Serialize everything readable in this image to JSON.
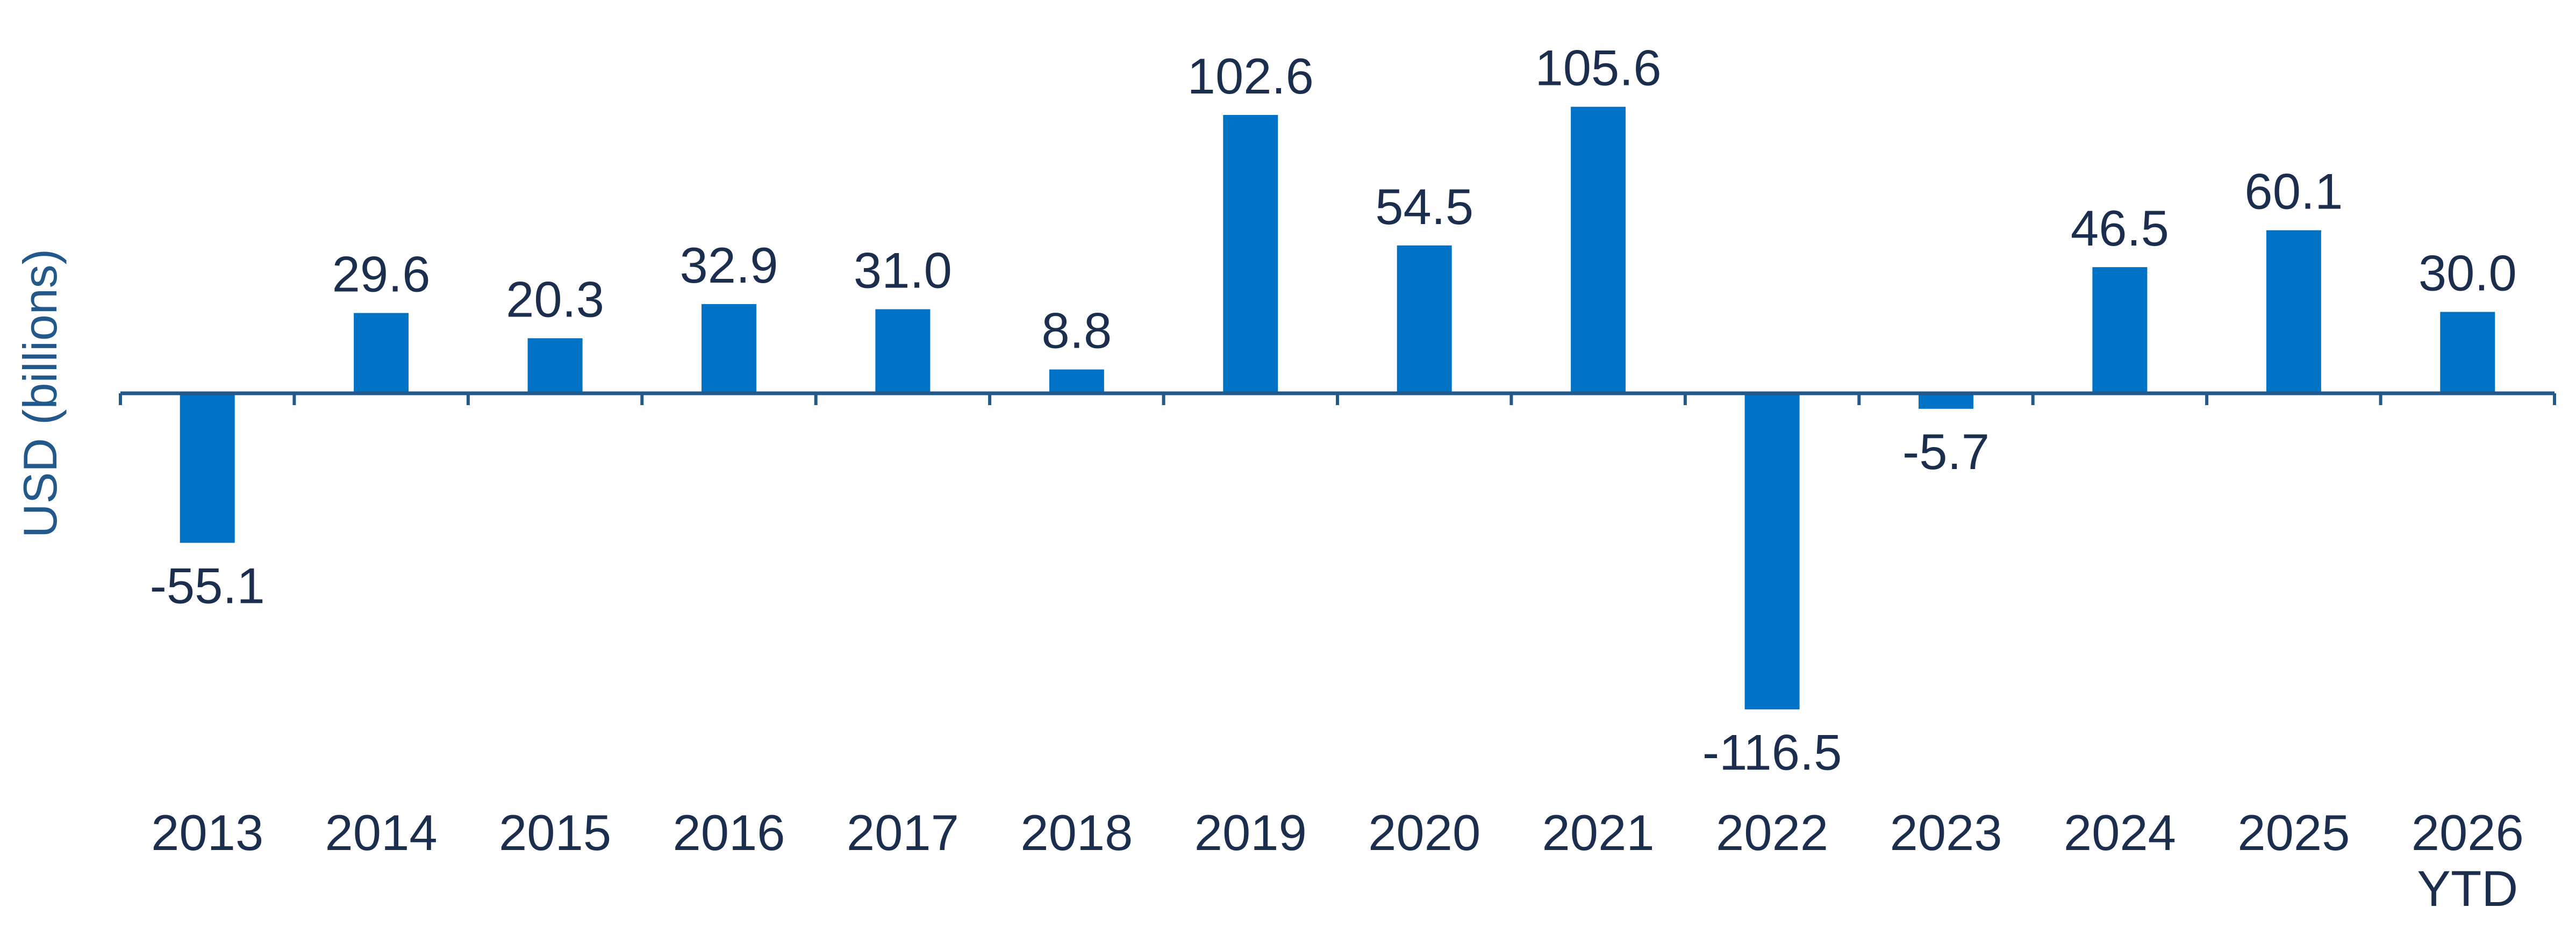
{
  "chart_data": {
    "type": "bar",
    "title": "",
    "xlabel": "",
    "ylabel": "USD (billions)",
    "categories": [
      [
        "2013"
      ],
      [
        "2014"
      ],
      [
        "2015"
      ],
      [
        "2016"
      ],
      [
        "2017"
      ],
      [
        "2018"
      ],
      [
        "2019"
      ],
      [
        "2020"
      ],
      [
        "2021"
      ],
      [
        "2022"
      ],
      [
        "2023"
      ],
      [
        "2024"
      ],
      [
        "2025"
      ],
      [
        "2026",
        "YTD"
      ]
    ],
    "values": [
      -55.1,
      29.6,
      20.3,
      32.9,
      31.0,
      8.8,
      102.6,
      54.5,
      105.6,
      -116.5,
      -5.7,
      46.5,
      60.1,
      30.0
    ],
    "value_labels": [
      "-55.1",
      "29.6",
      "20.3",
      "32.9",
      "31.0",
      "8.8",
      "102.6",
      "54.5",
      "105.6",
      "-116.5",
      "-5.7",
      "46.5",
      "60.1",
      "30.0"
    ],
    "ylim": [
      -116.5,
      105.6
    ],
    "grid": false,
    "legend": "none",
    "colors": {
      "bar": "#0072C6",
      "axis": "#23588A",
      "text": "#1B2E4E"
    }
  }
}
